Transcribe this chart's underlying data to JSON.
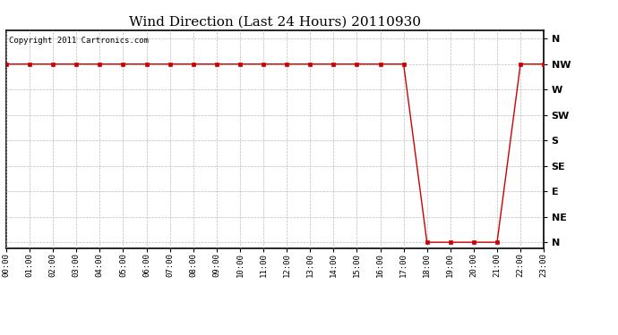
{
  "title": "Wind Direction (Last 24 Hours) 20110930",
  "copyright_text": "Copyright 2011 Cartronics.com",
  "background_color": "#ffffff",
  "plot_bg_color": "#ffffff",
  "line_color": "#cc0000",
  "marker_color": "#cc0000",
  "grid_color": "#bbbbbb",
  "y_labels": [
    "N",
    "NE",
    "E",
    "SE",
    "S",
    "SW",
    "W",
    "NW",
    "N"
  ],
  "y_values": [
    0,
    45,
    90,
    135,
    180,
    225,
    270,
    315,
    360
  ],
  "wind_data": [
    [
      0,
      315
    ],
    [
      1,
      315
    ],
    [
      2,
      315
    ],
    [
      3,
      315
    ],
    [
      4,
      315
    ],
    [
      5,
      315
    ],
    [
      6,
      315
    ],
    [
      7,
      315
    ],
    [
      8,
      315
    ],
    [
      9,
      315
    ],
    [
      10,
      315
    ],
    [
      11,
      315
    ],
    [
      12,
      315
    ],
    [
      13,
      315
    ],
    [
      14,
      315
    ],
    [
      15,
      315
    ],
    [
      16,
      315
    ],
    [
      17,
      315
    ],
    [
      18,
      0
    ],
    [
      19,
      0
    ],
    [
      20,
      0
    ],
    [
      21,
      0
    ],
    [
      22,
      315
    ],
    [
      23,
      315
    ]
  ],
  "xlim": [
    0,
    23
  ],
  "ylim": [
    -10,
    375
  ],
  "title_fontsize": 11,
  "tick_fontsize": 6.5,
  "copyright_fontsize": 6.5,
  "ylabel_fontsize": 8
}
